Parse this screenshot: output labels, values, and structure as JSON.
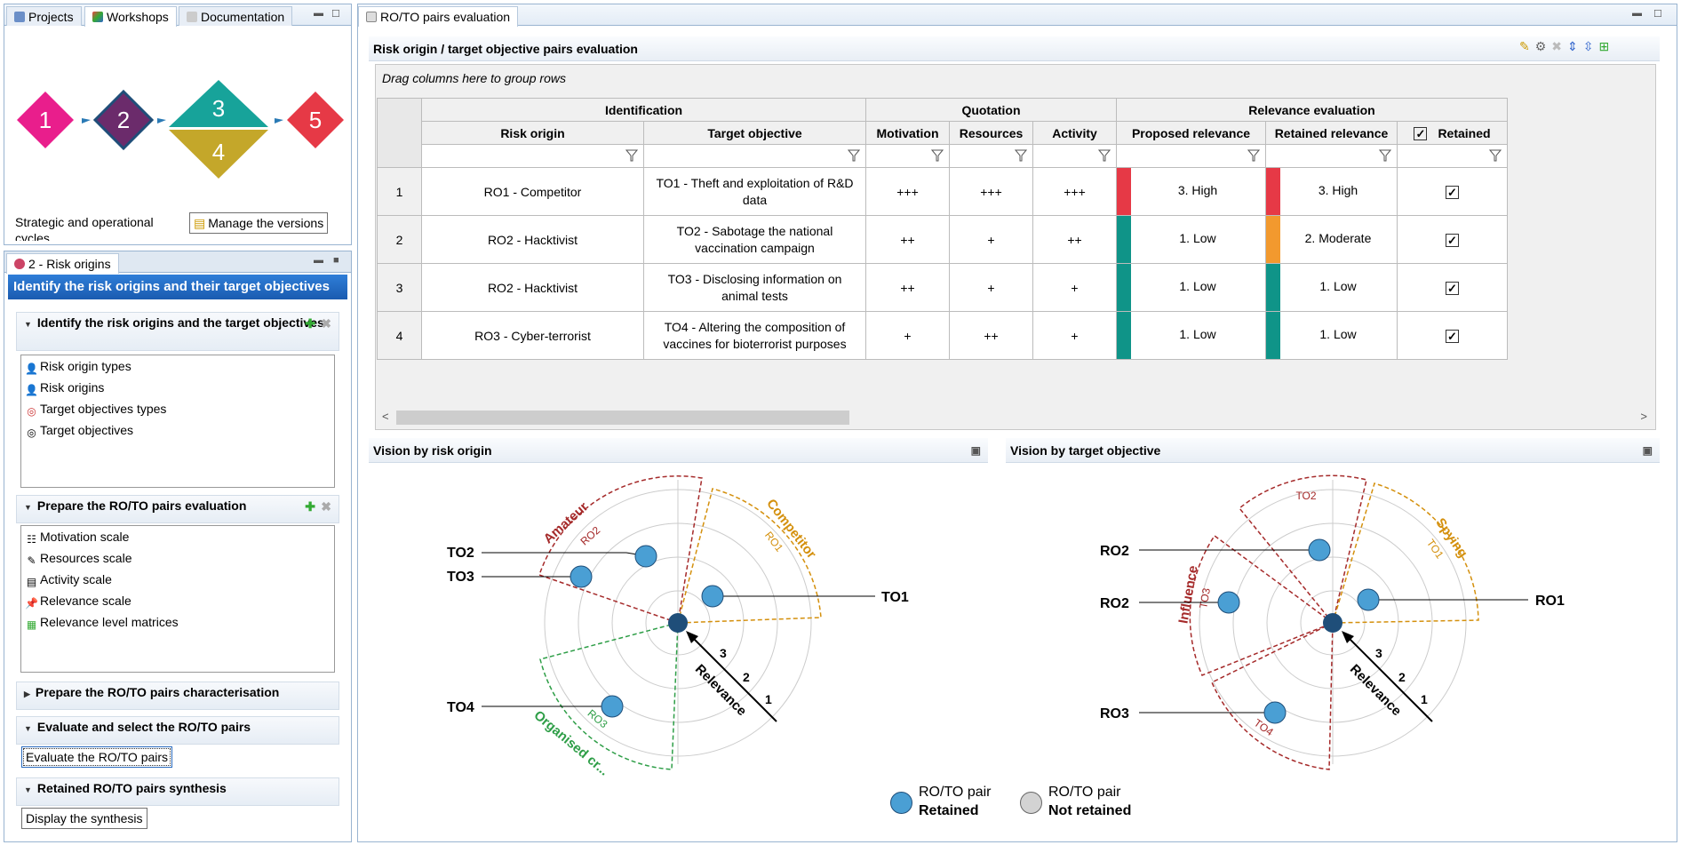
{
  "left_top": {
    "tabs": [
      "Projects",
      "Workshops",
      "Documentation"
    ],
    "diagram": {
      "steps": [
        "1",
        "2",
        "3",
        "4",
        "5"
      ]
    },
    "caption": "Strategic and operational cycles",
    "manage_button": "Manage the versions"
  },
  "left_bottom": {
    "tab": "2 - Risk origins",
    "header": "Identify the risk origins and their target objectives",
    "section1": {
      "title": "Identify the risk origins and the target objectives",
      "items": [
        "Risk origin types",
        "Risk origins",
        "Target objectives types",
        "Target objectives"
      ]
    },
    "section2": {
      "title": "Prepare the RO/TO pairs evaluation",
      "items": [
        "Motivation scale",
        "Resources scale",
        "Activity scale",
        "Relevance scale",
        "Relevance level matrices"
      ]
    },
    "section3": {
      "title": "Prepare the RO/TO pairs characterisation"
    },
    "section4": {
      "title": "Evaluate and select the RO/TO pairs",
      "button": "Evaluate the RO/TO pairs"
    },
    "section5": {
      "title": "Retained RO/TO pairs synthesis",
      "button": "Display the synthesis"
    }
  },
  "main": {
    "tab": "RO/TO pairs evaluation",
    "title": "Risk origin / target objective pairs evaluation",
    "group_hint": "Drag columns here to group rows",
    "groups": [
      "Identification",
      "Quotation",
      "Relevance evaluation"
    ],
    "columns": [
      "Risk origin",
      "Target objective",
      "Motivation",
      "Resources",
      "Activity",
      "Proposed relevance",
      "Retained relevance",
      "Retained"
    ],
    "rows": [
      {
        "n": "1",
        "ro": "RO1 - Competitor",
        "to": "TO1 - Theft and exploitation of R&D data",
        "mot": "+++",
        "res": "+++",
        "act": "+++",
        "prop": "3. High",
        "prop_color": "#e63946",
        "ret": "3. High",
        "ret_color": "#e63946"
      },
      {
        "n": "2",
        "ro": "RO2 - Hacktivist",
        "to": "TO2 - Sabotage the national vaccination campaign",
        "mot": "++",
        "res": "+",
        "act": "++",
        "prop": "1. Low",
        "prop_color": "#0f9488",
        "ret": "2. Moderate",
        "ret_color": "#f2992e"
      },
      {
        "n": "3",
        "ro": "RO2 - Hacktivist",
        "to": "TO3 - Disclosing information on animal tests",
        "mot": "++",
        "res": "+",
        "act": "+",
        "prop": "1. Low",
        "prop_color": "#0f9488",
        "ret": "1. Low",
        "ret_color": "#0f9488"
      },
      {
        "n": "4",
        "ro": "RO3 - Cyber-terrorist",
        "to": "TO4 - Altering the composition of vaccines for bioterrorist purposes",
        "mot": "+",
        "res": "++",
        "act": "+",
        "prop": "1. Low",
        "prop_color": "#0f9488",
        "ret": "1. Low",
        "ret_color": "#0f9488"
      }
    ]
  },
  "vision_ro": {
    "title": "Vision by risk origin",
    "sectors": [
      {
        "name": "Amateur",
        "sub": "RO2",
        "color": "#a52a2a"
      },
      {
        "name": "Competitor",
        "sub": "RO1",
        "color": "#d4900d"
      },
      {
        "name": "Organised cr...",
        "sub": "RO3",
        "color": "#2e9e47"
      }
    ],
    "labels": [
      "TO2",
      "TO3",
      "TO1",
      "TO4"
    ],
    "relevance": "Relevance",
    "rings": [
      "3",
      "2",
      "1"
    ]
  },
  "vision_to": {
    "title": "Vision by target objective",
    "sectors": [
      {
        "name": "Influence",
        "sub": "TO3",
        "color": "#a52a2a"
      },
      {
        "name": "Spying",
        "sub": "TO1",
        "color": "#d4900d"
      },
      {
        "name": "",
        "sub": "TO2",
        "color": "#a52a2a"
      },
      {
        "name": "",
        "sub": "TO4",
        "color": "#a52a2a"
      }
    ],
    "labels": [
      "RO2",
      "RO2",
      "RO1",
      "RO3"
    ],
    "relevance": "Relevance",
    "rings": [
      "3",
      "2",
      "1"
    ]
  },
  "legend": [
    {
      "l1": "RO/TO pair",
      "l2": "Retained",
      "color": "#4a9fd4"
    },
    {
      "l1": "RO/TO pair",
      "l2": "Not retained",
      "color": "#d3d3d3"
    }
  ]
}
